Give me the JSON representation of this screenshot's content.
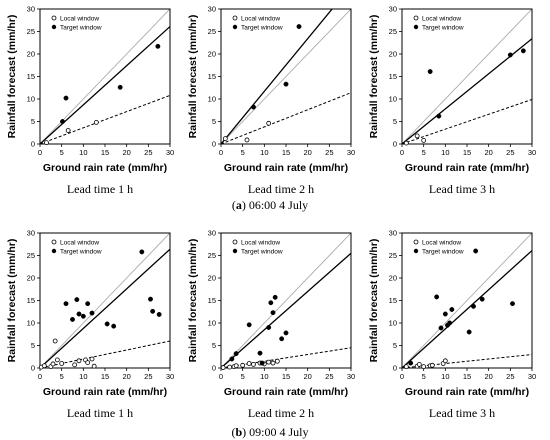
{
  "legend": {
    "local": "Local window",
    "target": "Target window"
  },
  "xlabel": "Ground rain rate (mm/hr)",
  "ylabel": "Rainfall forecast (mm/hr)",
  "captions": [
    {
      "prefix": "(",
      "letter": "a",
      "rest": ") 06:00 4 July"
    },
    {
      "prefix": "(",
      "letter": "b",
      "rest": ") 09:00 4 July"
    }
  ],
  "chart_data": [
    {
      "type": "scatter",
      "id": "a1",
      "lead_time": "Lead time 1 h",
      "xlim": [
        0,
        30
      ],
      "ylim": [
        0,
        30
      ],
      "ticks": [
        0,
        5,
        10,
        15,
        20,
        25,
        30
      ],
      "local": [
        [
          1.5,
          0.3
        ],
        [
          6.5,
          3.0
        ],
        [
          13,
          4.8
        ]
      ],
      "target": [
        [
          5.2,
          5.0
        ],
        [
          6.0,
          10.2
        ],
        [
          18.5,
          12.6
        ],
        [
          27.2,
          21.7
        ]
      ],
      "target_fit_slope": 0.87,
      "local_fit_slope": 0.36
    },
    {
      "type": "scatter",
      "id": "a2",
      "lead_time": "Lead time 2 h",
      "xlim": [
        0,
        30
      ],
      "ylim": [
        0,
        30
      ],
      "ticks": [
        0,
        5,
        10,
        15,
        20,
        25,
        30
      ],
      "local": [
        [
          1.0,
          1.2
        ],
        [
          6.0,
          0.9
        ],
        [
          11.0,
          4.6
        ]
      ],
      "target": [
        [
          7.5,
          8.2
        ],
        [
          15.0,
          13.3
        ],
        [
          18.0,
          26.1
        ]
      ],
      "target_fit_slope": 1.17,
      "local_fit_slope": 0.38
    },
    {
      "type": "scatter",
      "id": "a3",
      "lead_time": "Lead time 3 h",
      "xlim": [
        0,
        30
      ],
      "ylim": [
        0,
        30
      ],
      "ticks": [
        0,
        5,
        10,
        15,
        20,
        25,
        30
      ],
      "local": [
        [
          1.0,
          0.2
        ],
        [
          3.5,
          1.8
        ],
        [
          5.0,
          0.8
        ]
      ],
      "target": [
        [
          6.5,
          16.1
        ],
        [
          8.5,
          6.2
        ],
        [
          25.0,
          19.8
        ],
        [
          28.0,
          20.7
        ]
      ],
      "target_fit_slope": 0.78,
      "local_fit_slope": 0.33
    },
    {
      "type": "scatter",
      "id": "b1",
      "lead_time": "Lead time 1 h",
      "xlim": [
        0,
        30
      ],
      "ylim": [
        0,
        30
      ],
      "ticks": [
        0,
        5,
        10,
        15,
        20,
        25,
        30
      ],
      "local": [
        [
          0.3,
          0.2
        ],
        [
          1.0,
          0.5
        ],
        [
          2.5,
          0.3
        ],
        [
          3.0,
          0.9
        ],
        [
          3.5,
          6.0
        ],
        [
          4.0,
          1.8
        ],
        [
          5.0,
          1.0
        ],
        [
          8.0,
          0.7
        ],
        [
          9.0,
          1.6
        ],
        [
          10.5,
          1.8
        ],
        [
          11.0,
          1.2
        ],
        [
          12.0,
          2.0
        ],
        [
          12.5,
          0.4
        ]
      ],
      "target": [
        [
          6.0,
          14.3
        ],
        [
          7.5,
          10.8
        ],
        [
          8.5,
          15.2
        ],
        [
          9.0,
          12.0
        ],
        [
          10.0,
          11.5
        ],
        [
          11.0,
          14.3
        ],
        [
          12.0,
          12.2
        ],
        [
          15.5,
          9.8
        ],
        [
          17.0,
          9.3
        ],
        [
          23.5,
          25.8
        ],
        [
          25.5,
          15.3
        ],
        [
          26.0,
          12.6
        ],
        [
          27.5,
          11.9
        ]
      ],
      "target_fit_slope": 0.88,
      "local_fit_slope": 0.2
    },
    {
      "type": "scatter",
      "id": "b2",
      "lead_time": "Lead time 2 h",
      "xlim": [
        0,
        30
      ],
      "ylim": [
        0,
        30
      ],
      "ticks": [
        0,
        5,
        10,
        15,
        20,
        25,
        30
      ],
      "local": [
        [
          0.5,
          0.1
        ],
        [
          2.0,
          0.2
        ],
        [
          3.0,
          0.3
        ],
        [
          3.5,
          0.5
        ],
        [
          5.0,
          0.6
        ],
        [
          6.5,
          1.0
        ],
        [
          7.5,
          0.8
        ],
        [
          9.0,
          1.1
        ],
        [
          10.0,
          0.9
        ],
        [
          11.0,
          1.3
        ],
        [
          12.0,
          1.1
        ],
        [
          13.0,
          1.5
        ]
      ],
      "target": [
        [
          2.5,
          2.0
        ],
        [
          3.5,
          3.2
        ],
        [
          6.5,
          9.6
        ],
        [
          9.0,
          3.3
        ],
        [
          9.5,
          1.1
        ],
        [
          11.0,
          9.0
        ],
        [
          11.5,
          14.5
        ],
        [
          12.0,
          12.3
        ],
        [
          12.5,
          15.7
        ],
        [
          14.0,
          6.5
        ],
        [
          15.0,
          7.8
        ]
      ],
      "target_fit_slope": 0.85,
      "local_fit_slope": 0.15
    },
    {
      "type": "scatter",
      "id": "b3",
      "lead_time": "Lead time 3 h",
      "xlim": [
        0,
        30
      ],
      "ylim": [
        0,
        30
      ],
      "ticks": [
        0,
        5,
        10,
        15,
        20,
        25,
        30
      ],
      "local": [
        [
          1.0,
          0.3
        ],
        [
          3.5,
          0.4
        ],
        [
          4.0,
          0.8
        ],
        [
          5.0,
          0.3
        ],
        [
          6.5,
          0.5
        ],
        [
          7.0,
          0.6
        ],
        [
          9.5,
          1.0
        ],
        [
          10.0,
          1.6
        ]
      ],
      "target": [
        [
          2.0,
          1.1
        ],
        [
          8.0,
          15.8
        ],
        [
          9.0,
          8.9
        ],
        [
          10.0,
          12.0
        ],
        [
          10.5,
          9.5
        ],
        [
          11.0,
          10.0
        ],
        [
          11.5,
          13.0
        ],
        [
          15.5,
          8.0
        ],
        [
          16.5,
          13.7
        ],
        [
          17.0,
          26.0
        ],
        [
          18.5,
          15.3
        ],
        [
          25.5,
          14.3
        ]
      ],
      "target_fit_slope": 0.87,
      "local_fit_slope": 0.1
    }
  ]
}
